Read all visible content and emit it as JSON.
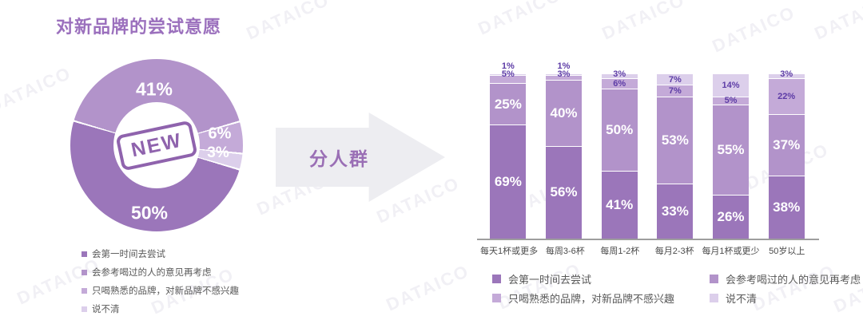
{
  "title": "对新品牌的尝试意愿",
  "watermark": "DATAICO",
  "arrow_label": "分人群",
  "colors": {
    "series": [
      "#9b76ba",
      "#b293ca",
      "#c4aad8",
      "#dccfeb"
    ],
    "title": "#9b70bd",
    "small_label": "#5d3ca6",
    "axis": "#9e9e9e",
    "legend_text": "#595959",
    "arrow_bg": "#ededf1"
  },
  "series_names": [
    "会第一时间去尝试",
    "会参考喝过的人的意见再考虑",
    "只喝熟悉的品牌，对新品牌不感兴趣",
    "说不清"
  ],
  "chart_data": [
    {
      "type": "pie",
      "donut": true,
      "title": "对新品牌的尝试意愿",
      "center_badge": "NEW",
      "legend_position": "bottom-left",
      "slices": [
        {
          "label": "会第一时间去尝试",
          "value": 50,
          "display": "50%"
        },
        {
          "label": "会参考喝过的人的意见再考虑",
          "value": 41,
          "display": "41%"
        },
        {
          "label": "只喝熟悉的品牌，对新品牌不感兴趣",
          "value": 6,
          "display": "6%"
        },
        {
          "label": "说不清",
          "value": 3,
          "display": "3%"
        }
      ]
    },
    {
      "type": "bar",
      "stacked": true,
      "ylim": [
        0,
        100
      ],
      "grid": false,
      "legend_position": "bottom",
      "categories": [
        "每天1杯或更多",
        "每周3-6杯",
        "每周1-2杯",
        "每月2-3杯",
        "每月1杯或更少",
        "50岁以上"
      ],
      "series": [
        {
          "name": "会第一时间去尝试",
          "values": [
            69,
            56,
            41,
            33,
            26,
            38
          ]
        },
        {
          "name": "会参考喝过的人的意见再考虑",
          "values": [
            25,
            40,
            50,
            53,
            55,
            37
          ]
        },
        {
          "name": "只喝熟悉的品牌，对新品牌不感兴趣",
          "values": [
            5,
            3,
            6,
            7,
            5,
            22
          ]
        },
        {
          "name": "说不清",
          "values": [
            1,
            1,
            3,
            7,
            14,
            3
          ]
        }
      ],
      "small_label_placement": [
        [
          "above",
          "above"
        ],
        [
          "above",
          "above"
        ],
        [
          "in",
          "above"
        ],
        [
          "in",
          "in"
        ],
        [
          "in",
          "in"
        ],
        [
          "in",
          "above"
        ]
      ]
    }
  ]
}
